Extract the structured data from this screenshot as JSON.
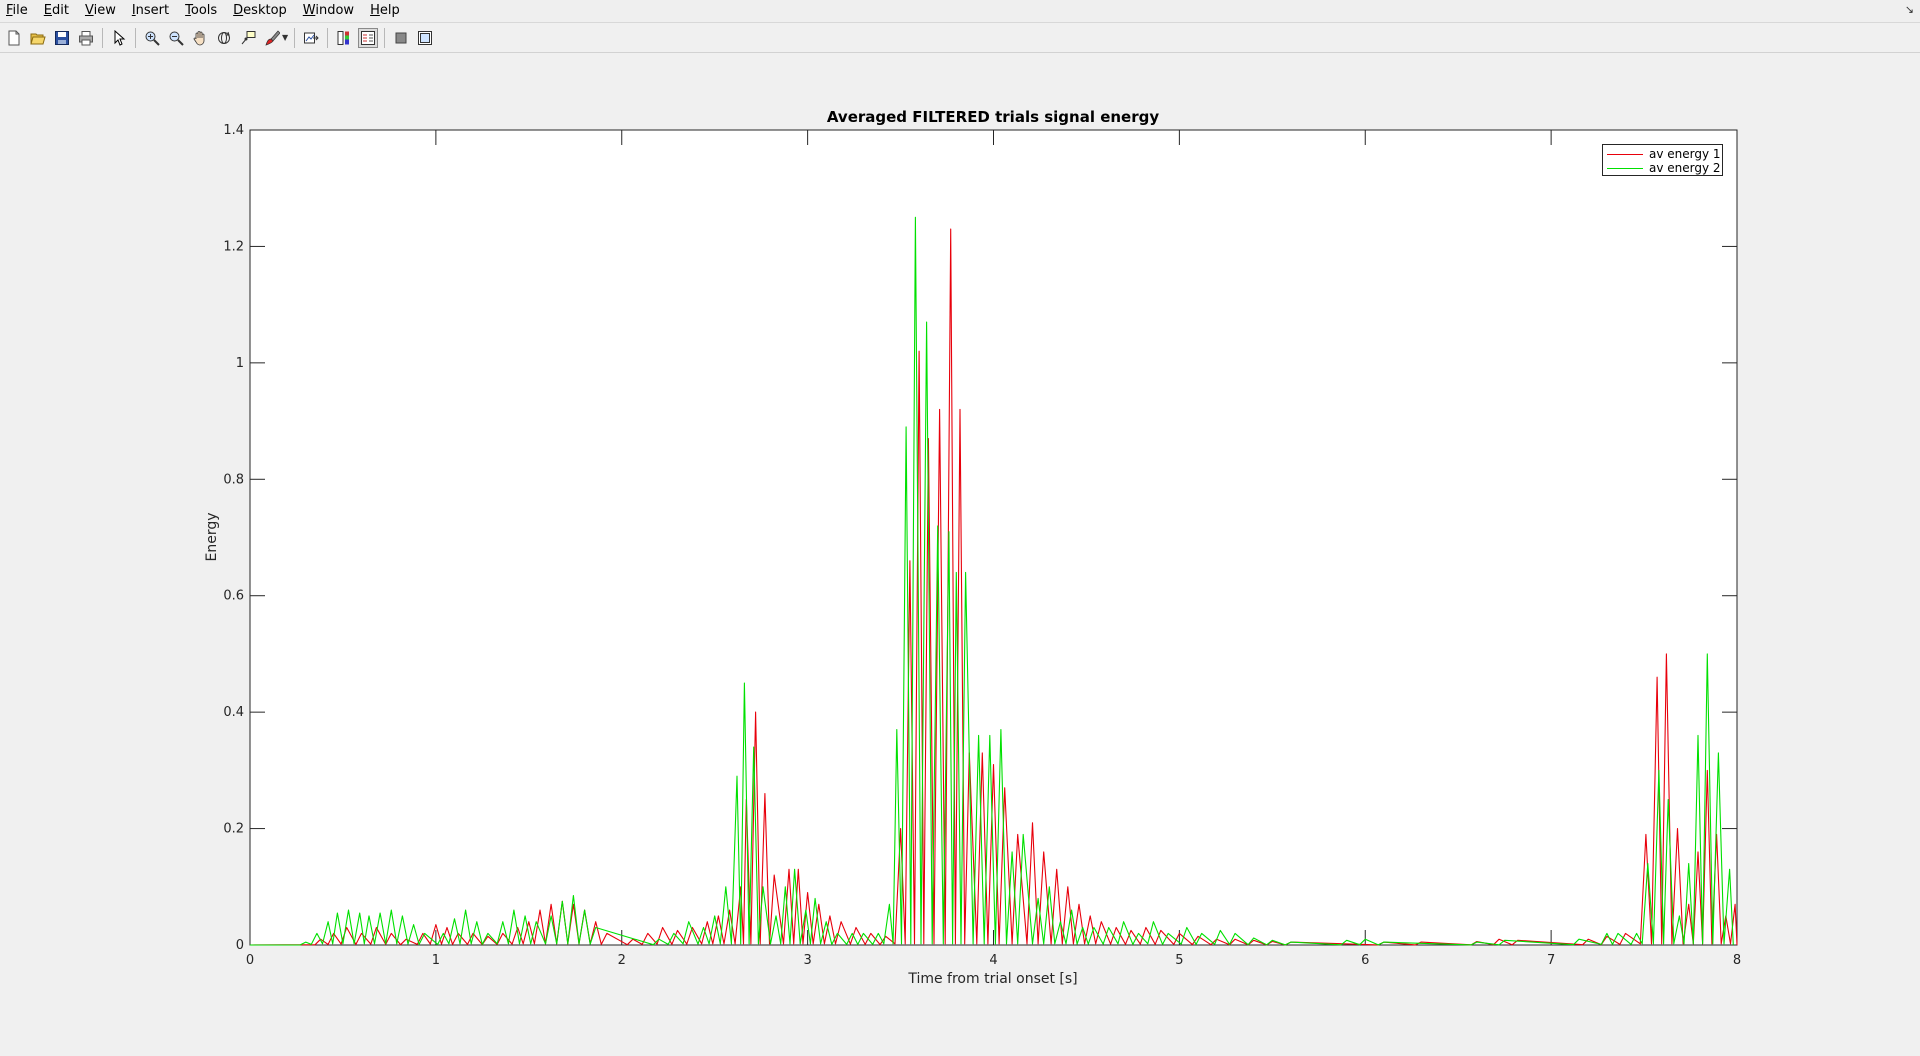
{
  "menubar": {
    "items": [
      {
        "label": "File",
        "key": "F"
      },
      {
        "label": "Edit",
        "key": "E"
      },
      {
        "label": "View",
        "key": "V"
      },
      {
        "label": "Insert",
        "key": "I"
      },
      {
        "label": "Tools",
        "key": "T"
      },
      {
        "label": "Desktop",
        "key": "D"
      },
      {
        "label": "Window",
        "key": "W"
      },
      {
        "label": "Help",
        "key": "H"
      }
    ]
  },
  "toolbar": {
    "icons": [
      "new-figure-icon",
      "open-file-icon",
      "save-icon",
      "print-icon",
      "edit-plot-arrow-icon",
      "zoom-in-icon",
      "zoom-out-icon",
      "pan-hand-icon",
      "rotate-3d-icon",
      "data-cursor-icon",
      "brush-icon",
      "link-plot-icon",
      "insert-colorbar-icon",
      "insert-legend-icon",
      "hide-plot-tools-icon",
      "show-plot-tools-icon"
    ]
  },
  "colors": {
    "series1": "#e8000b",
    "series2": "#00e000",
    "background": "#f0f0f0",
    "axes_bg": "#ffffff"
  },
  "chart_data": {
    "type": "line",
    "title": "Averaged FILTERED trials signal energy",
    "xlabel": "Time from trial onset [s]",
    "ylabel": "Energy",
    "xlim": [
      0,
      8
    ],
    "ylim": [
      0,
      1.4
    ],
    "xticks": [
      "0",
      "1",
      "2",
      "3",
      "4",
      "5",
      "6",
      "7",
      "8"
    ],
    "yticks": [
      "0",
      "0.2",
      "0.4",
      "0.6",
      "0.8",
      "1",
      "1.2",
      "1.4"
    ],
    "grid": false,
    "legend_position": "top-right",
    "series": [
      {
        "name": "av energy 1",
        "color": "#e8000b",
        "peaks": [
          [
            0.38,
            0.01
          ],
          [
            0.45,
            0.02
          ],
          [
            0.52,
            0.03
          ],
          [
            0.6,
            0.02
          ],
          [
            0.68,
            0.03
          ],
          [
            0.76,
            0.02
          ],
          [
            0.84,
            0.01
          ],
          [
            0.93,
            0.02
          ],
          [
            1.0,
            0.035
          ],
          [
            1.06,
            0.03
          ],
          [
            1.12,
            0.02
          ],
          [
            1.2,
            0.02
          ],
          [
            1.28,
            0.015
          ],
          [
            1.36,
            0.02
          ],
          [
            1.44,
            0.03
          ],
          [
            1.5,
            0.04
          ],
          [
            1.56,
            0.06
          ],
          [
            1.62,
            0.07
          ],
          [
            1.68,
            0.075
          ],
          [
            1.74,
            0.07
          ],
          [
            1.8,
            0.06
          ],
          [
            1.86,
            0.04
          ],
          [
            1.92,
            0.02
          ],
          [
            2.06,
            0.01
          ],
          [
            2.14,
            0.02
          ],
          [
            2.22,
            0.03
          ],
          [
            2.3,
            0.025
          ],
          [
            2.38,
            0.03
          ],
          [
            2.46,
            0.04
          ],
          [
            2.52,
            0.05
          ],
          [
            2.58,
            0.06
          ],
          [
            2.64,
            0.1
          ],
          [
            2.67,
            0.25
          ],
          [
            2.72,
            0.4
          ],
          [
            2.77,
            0.26
          ],
          [
            2.82,
            0.12
          ],
          [
            2.9,
            0.13
          ],
          [
            2.95,
            0.13
          ],
          [
            3.0,
            0.09
          ],
          [
            3.06,
            0.07
          ],
          [
            3.12,
            0.05
          ],
          [
            3.18,
            0.04
          ],
          [
            3.26,
            0.03
          ],
          [
            3.34,
            0.02
          ],
          [
            3.42,
            0.015
          ],
          [
            3.5,
            0.2
          ],
          [
            3.55,
            0.66
          ],
          [
            3.6,
            1.02
          ],
          [
            3.65,
            0.87
          ],
          [
            3.71,
            0.92
          ],
          [
            3.77,
            1.23
          ],
          [
            3.82,
            0.92
          ],
          [
            3.87,
            0.33
          ],
          [
            3.94,
            0.33
          ],
          [
            4.0,
            0.31
          ],
          [
            4.06,
            0.27
          ],
          [
            4.13,
            0.19
          ],
          [
            4.21,
            0.21
          ],
          [
            4.27,
            0.16
          ],
          [
            4.34,
            0.13
          ],
          [
            4.4,
            0.1
          ],
          [
            4.46,
            0.07
          ],
          [
            4.52,
            0.05
          ],
          [
            4.58,
            0.04
          ],
          [
            4.66,
            0.03
          ],
          [
            4.74,
            0.025
          ],
          [
            4.82,
            0.03
          ],
          [
            4.9,
            0.025
          ],
          [
            5.0,
            0.02
          ],
          [
            5.1,
            0.015
          ],
          [
            5.2,
            0.01
          ],
          [
            5.3,
            0.01
          ],
          [
            5.4,
            0.008
          ],
          [
            5.5,
            0.006
          ],
          [
            5.6,
            0.005
          ],
          [
            6.1,
            0.005
          ],
          [
            6.3,
            0.005
          ],
          [
            6.6,
            0.006
          ],
          [
            6.72,
            0.01
          ],
          [
            6.82,
            0.008
          ],
          [
            7.2,
            0.01
          ],
          [
            7.3,
            0.015
          ],
          [
            7.4,
            0.02
          ],
          [
            7.51,
            0.19
          ],
          [
            7.57,
            0.46
          ],
          [
            7.62,
            0.5
          ],
          [
            7.68,
            0.2
          ],
          [
            7.74,
            0.07
          ],
          [
            7.79,
            0.16
          ],
          [
            7.84,
            0.3
          ],
          [
            7.89,
            0.19
          ],
          [
            7.94,
            0.05
          ],
          [
            7.99,
            0.07
          ]
        ]
      },
      {
        "name": "av energy 2",
        "color": "#00e000",
        "peaks": [
          [
            0.3,
            0.005
          ],
          [
            0.36,
            0.02
          ],
          [
            0.42,
            0.04
          ],
          [
            0.47,
            0.055
          ],
          [
            0.53,
            0.06
          ],
          [
            0.59,
            0.055
          ],
          [
            0.64,
            0.05
          ],
          [
            0.7,
            0.055
          ],
          [
            0.76,
            0.06
          ],
          [
            0.82,
            0.05
          ],
          [
            0.88,
            0.035
          ],
          [
            0.94,
            0.02
          ],
          [
            1.04,
            0.02
          ],
          [
            1.1,
            0.045
          ],
          [
            1.16,
            0.06
          ],
          [
            1.22,
            0.04
          ],
          [
            1.28,
            0.02
          ],
          [
            1.36,
            0.04
          ],
          [
            1.42,
            0.06
          ],
          [
            1.48,
            0.05
          ],
          [
            1.54,
            0.04
          ],
          [
            1.62,
            0.05
          ],
          [
            1.68,
            0.075
          ],
          [
            1.74,
            0.085
          ],
          [
            1.8,
            0.06
          ],
          [
            1.86,
            0.03
          ],
          [
            2.2,
            0.01
          ],
          [
            2.28,
            0.02
          ],
          [
            2.36,
            0.04
          ],
          [
            2.44,
            0.03
          ],
          [
            2.5,
            0.05
          ],
          [
            2.56,
            0.1
          ],
          [
            2.62,
            0.29
          ],
          [
            2.66,
            0.45
          ],
          [
            2.71,
            0.34
          ],
          [
            2.76,
            0.1
          ],
          [
            2.83,
            0.05
          ],
          [
            2.88,
            0.1
          ],
          [
            2.93,
            0.13
          ],
          [
            2.99,
            0.06
          ],
          [
            3.04,
            0.08
          ],
          [
            3.1,
            0.04
          ],
          [
            3.16,
            0.02
          ],
          [
            3.24,
            0.02
          ],
          [
            3.3,
            0.02
          ],
          [
            3.38,
            0.02
          ],
          [
            3.44,
            0.07
          ],
          [
            3.48,
            0.37
          ],
          [
            3.53,
            0.89
          ],
          [
            3.58,
            1.25
          ],
          [
            3.64,
            1.07
          ],
          [
            3.7,
            0.72
          ],
          [
            3.76,
            0.71
          ],
          [
            3.8,
            0.64
          ],
          [
            3.85,
            0.64
          ],
          [
            3.92,
            0.36
          ],
          [
            3.98,
            0.36
          ],
          [
            4.04,
            0.37
          ],
          [
            4.1,
            0.16
          ],
          [
            4.16,
            0.19
          ],
          [
            4.24,
            0.08
          ],
          [
            4.3,
            0.1
          ],
          [
            4.36,
            0.04
          ],
          [
            4.42,
            0.06
          ],
          [
            4.48,
            0.03
          ],
          [
            4.54,
            0.03
          ],
          [
            4.62,
            0.03
          ],
          [
            4.7,
            0.04
          ],
          [
            4.78,
            0.02
          ],
          [
            4.86,
            0.04
          ],
          [
            4.94,
            0.02
          ],
          [
            5.04,
            0.03
          ],
          [
            5.12,
            0.02
          ],
          [
            5.22,
            0.025
          ],
          [
            5.3,
            0.02
          ],
          [
            5.4,
            0.012
          ],
          [
            5.5,
            0.008
          ],
          [
            5.6,
            0.005
          ],
          [
            5.9,
            0.008
          ],
          [
            6.0,
            0.01
          ],
          [
            6.1,
            0.005
          ],
          [
            6.6,
            0.005
          ],
          [
            6.75,
            0.008
          ],
          [
            7.15,
            0.01
          ],
          [
            7.3,
            0.02
          ],
          [
            7.36,
            0.02
          ],
          [
            7.46,
            0.02
          ],
          [
            7.52,
            0.14
          ],
          [
            7.58,
            0.3
          ],
          [
            7.63,
            0.25
          ],
          [
            7.69,
            0.05
          ],
          [
            7.74,
            0.14
          ],
          [
            7.79,
            0.36
          ],
          [
            7.84,
            0.5
          ],
          [
            7.9,
            0.33
          ],
          [
            7.96,
            0.13
          ]
        ]
      }
    ]
  }
}
